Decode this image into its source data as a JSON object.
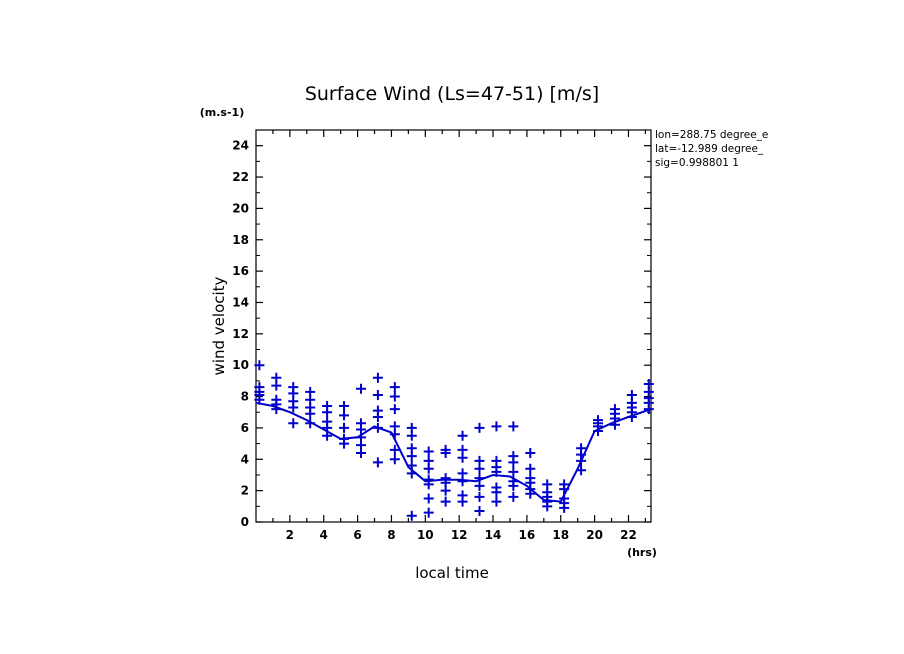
{
  "chart_data": {
    "type": "scatter",
    "title": "Surface Wind  (Ls=47-51) [m/s]",
    "xlabel": "local time",
    "ylabel": "wind velocity",
    "x_unit": "(hrs)",
    "y_unit": "(m.s-1)",
    "info_lines": [
      "lon=288.75 degree_e",
      "lat=-12.989 degree_",
      "sig=0.998801 1"
    ],
    "xlim": [
      0,
      23.33
    ],
    "ylim": [
      0,
      25
    ],
    "x_ticks": [
      2,
      4,
      6,
      8,
      10,
      12,
      14,
      16,
      18,
      20,
      22
    ],
    "y_ticks": [
      0,
      2,
      4,
      6,
      8,
      10,
      12,
      14,
      16,
      18,
      20,
      22,
      24
    ],
    "color": "#0000cc",
    "series": [
      {
        "kind": "line",
        "x": [
          0,
          1,
          2,
          3,
          4,
          5,
          6,
          7,
          8,
          9,
          10,
          11,
          12,
          13,
          14,
          15,
          16,
          17,
          18,
          19,
          20,
          21,
          22,
          23.33
        ],
        "y": [
          7.6,
          7.4,
          7.0,
          6.5,
          5.9,
          5.3,
          5.4,
          6.1,
          5.7,
          3.5,
          2.6,
          2.7,
          2.7,
          2.6,
          3.0,
          2.9,
          2.3,
          1.4,
          1.3,
          3.4,
          5.8,
          6.3,
          6.7,
          7.2
        ]
      },
      {
        "kind": "markers",
        "points": [
          [
            0.2,
            8.6
          ],
          [
            0.2,
            8.3
          ],
          [
            0.2,
            8.1
          ],
          [
            0.2,
            7.8
          ],
          [
            0.2,
            10.0
          ],
          [
            1.2,
            9.2
          ],
          [
            1.2,
            8.7
          ],
          [
            1.2,
            7.8
          ],
          [
            1.2,
            7.5
          ],
          [
            1.2,
            7.2
          ],
          [
            2.2,
            8.6
          ],
          [
            2.2,
            8.2
          ],
          [
            2.2,
            7.7
          ],
          [
            2.2,
            7.3
          ],
          [
            2.2,
            6.3
          ],
          [
            3.2,
            8.3
          ],
          [
            3.2,
            7.8
          ],
          [
            3.2,
            7.3
          ],
          [
            3.2,
            6.9
          ],
          [
            3.2,
            6.3
          ],
          [
            4.2,
            7.4
          ],
          [
            4.2,
            7.0
          ],
          [
            4.2,
            6.4
          ],
          [
            4.2,
            6.0
          ],
          [
            4.2,
            5.5
          ],
          [
            5.2,
            7.4
          ],
          [
            5.2,
            6.8
          ],
          [
            5.2,
            6.0
          ],
          [
            5.2,
            5.3
          ],
          [
            5.2,
            5.0
          ],
          [
            6.2,
            8.5
          ],
          [
            6.2,
            6.3
          ],
          [
            6.2,
            5.9
          ],
          [
            6.2,
            5.4
          ],
          [
            6.2,
            4.9
          ],
          [
            6.2,
            4.4
          ],
          [
            7.2,
            9.2
          ],
          [
            7.2,
            8.1
          ],
          [
            7.2,
            7.1
          ],
          [
            7.2,
            6.7
          ],
          [
            7.2,
            6.0
          ],
          [
            7.2,
            3.8
          ],
          [
            8.2,
            8.6
          ],
          [
            8.2,
            8.0
          ],
          [
            8.2,
            7.2
          ],
          [
            8.2,
            6.1
          ],
          [
            8.2,
            5.6
          ],
          [
            8.2,
            4.6
          ],
          [
            8.2,
            4.0
          ],
          [
            9.2,
            6.0
          ],
          [
            9.2,
            5.5
          ],
          [
            9.2,
            4.7
          ],
          [
            9.2,
            4.2
          ],
          [
            9.2,
            3.6
          ],
          [
            9.2,
            3.1
          ],
          [
            9.2,
            0.4
          ],
          [
            10.2,
            4.5
          ],
          [
            10.2,
            3.9
          ],
          [
            10.2,
            3.4
          ],
          [
            10.2,
            2.7
          ],
          [
            10.2,
            2.4
          ],
          [
            10.2,
            1.5
          ],
          [
            10.2,
            0.6
          ],
          [
            11.2,
            4.6
          ],
          [
            11.2,
            4.4
          ],
          [
            11.2,
            2.8
          ],
          [
            11.2,
            2.5
          ],
          [
            11.2,
            2.0
          ],
          [
            11.2,
            1.3
          ],
          [
            12.2,
            5.5
          ],
          [
            12.2,
            4.6
          ],
          [
            12.2,
            4.1
          ],
          [
            12.2,
            3.1
          ],
          [
            12.2,
            2.6
          ],
          [
            12.2,
            1.7
          ],
          [
            12.2,
            1.3
          ],
          [
            13.2,
            6.0
          ],
          [
            13.2,
            3.9
          ],
          [
            13.2,
            3.4
          ],
          [
            13.2,
            2.8
          ],
          [
            13.2,
            2.3
          ],
          [
            13.2,
            1.6
          ],
          [
            13.2,
            0.7
          ],
          [
            14.2,
            6.1
          ],
          [
            14.2,
            3.9
          ],
          [
            14.2,
            3.5
          ],
          [
            14.2,
            3.2
          ],
          [
            14.2,
            2.2
          ],
          [
            14.2,
            1.9
          ],
          [
            14.2,
            1.3
          ],
          [
            15.2,
            6.1
          ],
          [
            15.2,
            4.2
          ],
          [
            15.2,
            3.8
          ],
          [
            15.2,
            3.2
          ],
          [
            15.2,
            2.6
          ],
          [
            15.2,
            2.3
          ],
          [
            15.2,
            1.6
          ],
          [
            16.2,
            4.4
          ],
          [
            16.2,
            3.4
          ],
          [
            16.2,
            2.8
          ],
          [
            16.2,
            2.5
          ],
          [
            16.2,
            2.1
          ],
          [
            16.2,
            1.8
          ],
          [
            17.2,
            2.4
          ],
          [
            17.2,
            1.9
          ],
          [
            17.2,
            1.6
          ],
          [
            17.2,
            1.3
          ],
          [
            17.2,
            1.0
          ],
          [
            18.2,
            2.4
          ],
          [
            18.2,
            2.1
          ],
          [
            18.2,
            1.5
          ],
          [
            18.2,
            1.2
          ],
          [
            18.2,
            0.9
          ],
          [
            19.2,
            4.7
          ],
          [
            19.2,
            4.3
          ],
          [
            19.2,
            3.9
          ],
          [
            19.2,
            3.3
          ],
          [
            20.2,
            6.5
          ],
          [
            20.2,
            6.3
          ],
          [
            20.2,
            6.1
          ],
          [
            20.2,
            5.8
          ],
          [
            21.2,
            7.2
          ],
          [
            21.2,
            6.9
          ],
          [
            21.2,
            6.6
          ],
          [
            21.2,
            6.2
          ],
          [
            22.2,
            8.1
          ],
          [
            22.2,
            7.6
          ],
          [
            22.2,
            7.3
          ],
          [
            22.2,
            7.0
          ],
          [
            22.2,
            6.7
          ],
          [
            23.2,
            8.8
          ],
          [
            23.2,
            8.3
          ],
          [
            23.2,
            7.9
          ],
          [
            23.2,
            7.6
          ],
          [
            23.2,
            7.2
          ]
        ]
      }
    ]
  }
}
